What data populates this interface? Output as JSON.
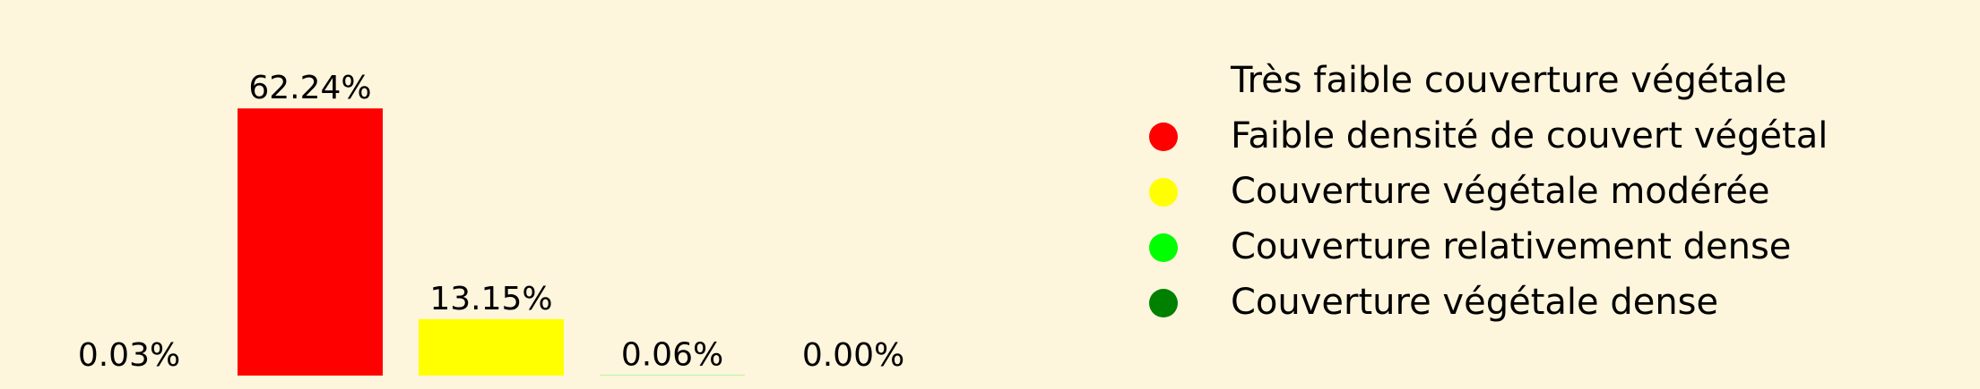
{
  "chart_data": {
    "type": "bar",
    "categories": [
      "Très faible couverture végétale",
      "Faible densité de couvert végétal",
      "Couverture végétale modérée",
      "Couverture relativement dense",
      "Couverture végétale dense"
    ],
    "values": [
      0.03,
      62.24,
      13.15,
      0.06,
      0.0
    ],
    "data_labels": [
      "0.03%",
      "62.24%",
      "13.15%",
      "0.06%",
      "0.00%"
    ],
    "colors": [
      "#fdf5dc",
      "#ff0000",
      "#ffff00",
      "#00ff00",
      "#008000"
    ],
    "ylim": [
      0,
      75
    ],
    "grid": false,
    "axes_visible": false,
    "legend_position": "right"
  }
}
